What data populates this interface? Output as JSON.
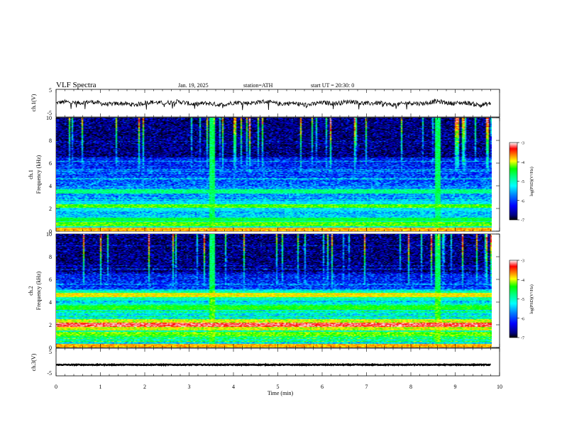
{
  "header": {
    "title": "VLF Spectra",
    "date": "Jan. 19, 2025",
    "station": "station=ATH",
    "start_ut": "start UT =  20:30: 0"
  },
  "chart_data": [
    {
      "type": "line",
      "panel": "ch1-waveform",
      "ylabel": "ch.1(V)",
      "ylim": [
        -5,
        5
      ],
      "yticks": [
        "5",
        "-5"
      ],
      "x_range_min": [
        0,
        9.8
      ],
      "baseline_v": 0,
      "amplitude_v": 0.8,
      "spikes_v": -2.5
    },
    {
      "type": "heatmap",
      "panel": "ch1-spectrogram",
      "ylabel": "ch.1\nFrequency (kHz)",
      "ylim": [
        0,
        10
      ],
      "yticks": [
        "0",
        "2",
        "4",
        "6",
        "8",
        "10"
      ],
      "colorbar": {
        "label": "log(PSD)(V²/Hz)",
        "range": [
          -7,
          -3
        ],
        "ticks": [
          "-3",
          "-4",
          "-5",
          "-6",
          "-7"
        ]
      },
      "bands_khz": [
        {
          "f": 2.2,
          "level": -4.5
        },
        {
          "f": 3.5,
          "level": -5.0
        },
        {
          "f": 1.0,
          "level": -4.8
        },
        {
          "f": 0.6,
          "level": -4.5
        }
      ],
      "bursts_min": [
        3.5,
        8.6
      ]
    },
    {
      "type": "heatmap",
      "panel": "ch2-spectrogram",
      "ylabel": "ch.2\nFrequency (kHz)",
      "ylim": [
        0,
        10
      ],
      "yticks": [
        "0",
        "2",
        "4",
        "6",
        "8",
        "10"
      ],
      "colorbar": {
        "label": "log(PSD)(V²/Hz)",
        "range": [
          -7,
          -3
        ],
        "ticks": [
          "-3",
          "-4",
          "-5",
          "-6",
          "-7"
        ]
      },
      "bands_khz": [
        {
          "f": 2.0,
          "level": -3.6
        },
        {
          "f": 4.6,
          "level": -4.5
        },
        {
          "f": 3.5,
          "level": -5.0
        },
        {
          "f": 1.2,
          "level": -4.8
        }
      ],
      "bursts_min": [
        3.5,
        8.6
      ]
    },
    {
      "type": "line",
      "panel": "ch3-waveform",
      "ylabel": "ch.3(V)",
      "ylim": [
        -5,
        5
      ],
      "yticks": [
        "5",
        "-5"
      ],
      "x_range_min": [
        0,
        9.8
      ],
      "baseline_v": -1,
      "amplitude_v": 0.15
    }
  ],
  "xaxis": {
    "label": "Time (min)",
    "range": [
      0,
      10
    ],
    "ticks": [
      "0",
      "1",
      "2",
      "3",
      "4",
      "5",
      "6",
      "7",
      "8",
      "9",
      "10"
    ]
  },
  "colors": {
    "colormap": [
      "#000000",
      "#00007f",
      "#0000ff",
      "#0080ff",
      "#00ffff",
      "#00ff80",
      "#00ff00",
      "#ffff00",
      "#ff8000",
      "#ff0000",
      "#ffffff"
    ]
  }
}
